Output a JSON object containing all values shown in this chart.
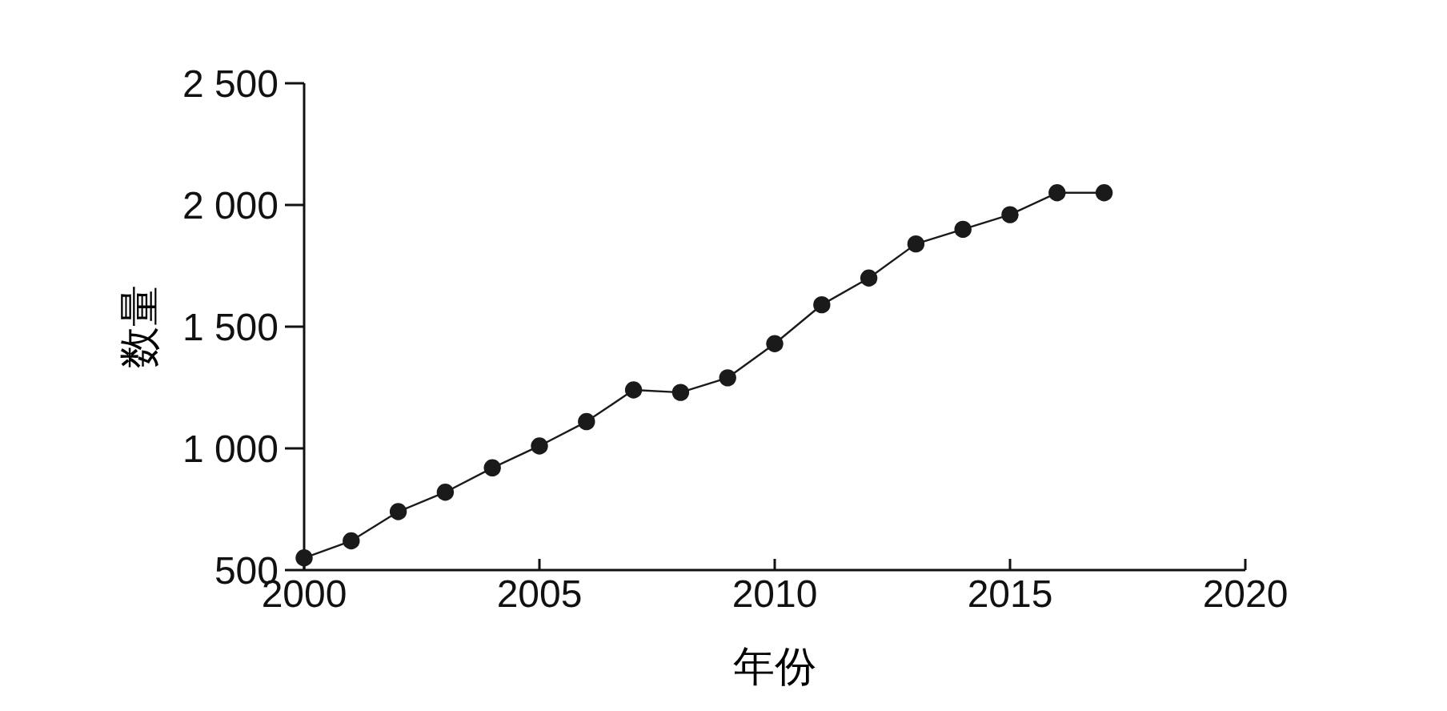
{
  "chart_data": {
    "type": "line",
    "xlabel": "年份",
    "ylabel": "数量",
    "x": [
      2000,
      2001,
      2002,
      2003,
      2004,
      2005,
      2006,
      2007,
      2008,
      2009,
      2010,
      2011,
      2012,
      2013,
      2014,
      2015,
      2016,
      2017
    ],
    "series": [
      {
        "color": "#1a1a1a",
        "values": [
          550,
          620,
          740,
          820,
          920,
          1010,
          1110,
          1240,
          1230,
          1290,
          1430,
          1590,
          1700,
          1840,
          1900,
          1960,
          2050,
          2050
        ]
      }
    ],
    "xlim": [
      2000,
      2020
    ],
    "xticks": [
      2000,
      2005,
      2010,
      2015,
      2020
    ],
    "ylim": [
      500,
      2500
    ],
    "yticks": [
      500,
      {
        "value": 1000,
        "label": "1 000"
      },
      {
        "value": 1500,
        "label": "1 500"
      },
      {
        "value": 2000,
        "label": "2 000"
      },
      {
        "value": 2500,
        "label": "2 500"
      }
    ],
    "marker": "circle",
    "line_style": "solid",
    "grid": false
  }
}
